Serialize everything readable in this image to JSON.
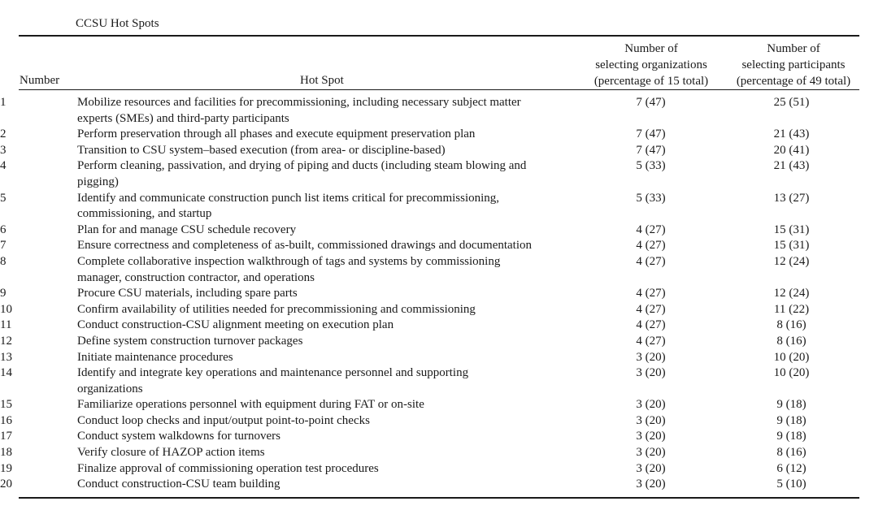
{
  "caption": "CCSU Hot Spots",
  "headers": {
    "number": "Number",
    "hot_spot": "Hot Spot",
    "orgs_line1": "Number of",
    "orgs_line2": "selecting organizations",
    "orgs_line3": "(percentage of 15 total)",
    "parts_line1": "Number of",
    "parts_line2": "selecting participants",
    "parts_line3": "(percentage of 49 total)"
  },
  "rows": [
    {
      "num": "1",
      "spot_lines": [
        "Mobilize resources and facilities for precommissioning, including necessary subject matter",
        "experts (SMEs) and third-party participants"
      ],
      "orgs": "7 (47)",
      "parts": "25 (51)"
    },
    {
      "num": "2",
      "spot_lines": [
        "Perform preservation through all phases and execute equipment preservation plan"
      ],
      "orgs": "7 (47)",
      "parts": "21 (43)"
    },
    {
      "num": "3",
      "spot_lines": [
        "Transition to CSU system–based execution (from area- or discipline-based)"
      ],
      "orgs": "7 (47)",
      "parts": "20 (41)"
    },
    {
      "num": "4",
      "spot_lines": [
        "Perform cleaning, passivation, and drying of piping and ducts (including steam blowing and",
        "pigging)"
      ],
      "orgs": "5 (33)",
      "parts": "21 (43)"
    },
    {
      "num": "5",
      "spot_lines": [
        "Identify and communicate construction punch list items critical for precommissioning,",
        "commissioning, and startup"
      ],
      "orgs": "5 (33)",
      "parts": "13 (27)"
    },
    {
      "num": "6",
      "spot_lines": [
        "Plan for and manage CSU schedule recovery"
      ],
      "orgs": "4 (27)",
      "parts": "15 (31)"
    },
    {
      "num": "7",
      "spot_lines": [
        "Ensure correctness and completeness of as-built, commissioned drawings and documentation"
      ],
      "orgs": "4 (27)",
      "parts": "15 (31)"
    },
    {
      "num": "8",
      "spot_lines": [
        "Complete collaborative inspection walkthrough of tags and systems by commissioning",
        "manager, construction contractor, and operations"
      ],
      "orgs": "4 (27)",
      "parts": "12 (24)"
    },
    {
      "num": "9",
      "spot_lines": [
        "Procure CSU materials, including spare parts"
      ],
      "orgs": "4 (27)",
      "parts": "12 (24)"
    },
    {
      "num": "10",
      "spot_lines": [
        "Confirm availability of utilities needed for precommissioning and commissioning"
      ],
      "orgs": "4 (27)",
      "parts": "11 (22)"
    },
    {
      "num": "11",
      "spot_lines": [
        "Conduct construction-CSU alignment meeting on execution plan"
      ],
      "orgs": "4 (27)",
      "parts": "8 (16)"
    },
    {
      "num": "12",
      "spot_lines": [
        "Define system construction turnover packages"
      ],
      "orgs": "4 (27)",
      "parts": "8 (16)"
    },
    {
      "num": "13",
      "spot_lines": [
        "Initiate maintenance procedures"
      ],
      "orgs": "3 (20)",
      "parts": "10 (20)"
    },
    {
      "num": "14",
      "spot_lines": [
        "Identify and integrate key operations and maintenance personnel and supporting",
        "organizations"
      ],
      "orgs": "3 (20)",
      "parts": "10 (20)"
    },
    {
      "num": "15",
      "spot_lines": [
        "Familiarize operations personnel with equipment during FAT or on-site"
      ],
      "orgs": "3 (20)",
      "parts": "9 (18)"
    },
    {
      "num": "16",
      "spot_lines": [
        "Conduct loop checks and input/output point-to-point checks"
      ],
      "orgs": "3 (20)",
      "parts": "9 (18)"
    },
    {
      "num": "17",
      "spot_lines": [
        "Conduct system walkdowns for turnovers"
      ],
      "orgs": "3 (20)",
      "parts": "9 (18)"
    },
    {
      "num": "18",
      "spot_lines": [
        "Verify closure of HAZOP action items"
      ],
      "orgs": "3 (20)",
      "parts": "8 (16)"
    },
    {
      "num": "19",
      "spot_lines": [
        "Finalize approval of commissioning operation test procedures"
      ],
      "orgs": "3 (20)",
      "parts": "6 (12)"
    },
    {
      "num": "20",
      "spot_lines": [
        "Conduct construction-CSU team building"
      ],
      "orgs": "3 (20)",
      "parts": "5 (10)"
    }
  ]
}
